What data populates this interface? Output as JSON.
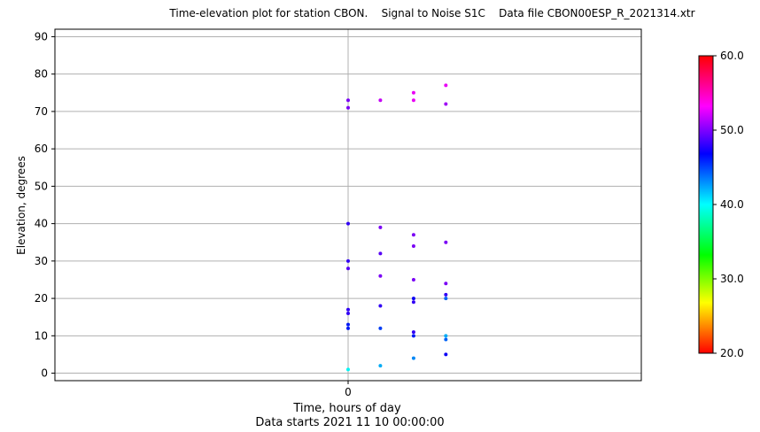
{
  "chart_data": {
    "type": "scatter",
    "title": "Time-elevation plot for station CBON.    Signal to Noise S1C    Data file CBON00ESP_R_2021314.xtr",
    "xlabel": "Time, hours of day",
    "xlabel2": "Data starts 2021 11 10 00:00:00",
    "ylabel": "Elevation, degrees",
    "xlim": [
      -0.3,
      0.3
    ],
    "ylim": [
      -2,
      92
    ],
    "x_ticks": [
      "0"
    ],
    "y_ticks": [
      "0",
      "10",
      "20",
      "30",
      "40",
      "50",
      "60",
      "70",
      "80",
      "90"
    ],
    "grid": true,
    "colorbar": {
      "min": 20,
      "max": 60,
      "ticks": [
        "20.0",
        "30.0",
        "40.0",
        "50.0",
        "60.0"
      ],
      "colormap": "hsv"
    },
    "points": [
      {
        "x": 0.0,
        "y": 73,
        "c": 50
      },
      {
        "x": 0.0,
        "y": 71,
        "c": 50
      },
      {
        "x": 0.0,
        "y": 40,
        "c": 48
      },
      {
        "x": 0.0,
        "y": 30,
        "c": 48
      },
      {
        "x": 0.0,
        "y": 28,
        "c": 49
      },
      {
        "x": 0.0,
        "y": 17,
        "c": 48
      },
      {
        "x": 0.0,
        "y": 16,
        "c": 48
      },
      {
        "x": 0.0,
        "y": 13,
        "c": 46
      },
      {
        "x": 0.0,
        "y": 12,
        "c": 46
      },
      {
        "x": 0.0,
        "y": 1,
        "c": 40
      },
      {
        "x": 0.033,
        "y": 73,
        "c": 52
      },
      {
        "x": 0.033,
        "y": 39,
        "c": 50
      },
      {
        "x": 0.033,
        "y": 32,
        "c": 49
      },
      {
        "x": 0.033,
        "y": 26,
        "c": 50
      },
      {
        "x": 0.033,
        "y": 18,
        "c": 48
      },
      {
        "x": 0.033,
        "y": 12,
        "c": 45
      },
      {
        "x": 0.033,
        "y": 2,
        "c": 42
      },
      {
        "x": 0.067,
        "y": 75,
        "c": 53
      },
      {
        "x": 0.067,
        "y": 73,
        "c": 53
      },
      {
        "x": 0.067,
        "y": 37,
        "c": 50
      },
      {
        "x": 0.067,
        "y": 34,
        "c": 50
      },
      {
        "x": 0.067,
        "y": 25,
        "c": 50
      },
      {
        "x": 0.067,
        "y": 20,
        "c": 47
      },
      {
        "x": 0.067,
        "y": 19,
        "c": 48
      },
      {
        "x": 0.067,
        "y": 11,
        "c": 48
      },
      {
        "x": 0.067,
        "y": 10,
        "c": 46
      },
      {
        "x": 0.067,
        "y": 4,
        "c": 43
      },
      {
        "x": 0.1,
        "y": 77,
        "c": 53
      },
      {
        "x": 0.1,
        "y": 72,
        "c": 51
      },
      {
        "x": 0.1,
        "y": 35,
        "c": 50
      },
      {
        "x": 0.1,
        "y": 24,
        "c": 50
      },
      {
        "x": 0.1,
        "y": 21,
        "c": 48
      },
      {
        "x": 0.1,
        "y": 20,
        "c": 44
      },
      {
        "x": 0.1,
        "y": 10,
        "c": 42
      },
      {
        "x": 0.1,
        "y": 9,
        "c": 44
      },
      {
        "x": 0.1,
        "y": 5,
        "c": 47
      }
    ]
  }
}
